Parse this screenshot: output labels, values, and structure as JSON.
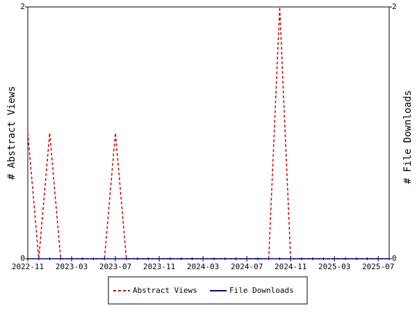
{
  "chart_data": {
    "type": "line",
    "categories": [
      "2022-11",
      null,
      null,
      null,
      "2023-03",
      null,
      null,
      null,
      "2023-07",
      null,
      null,
      null,
      "2023-11",
      null,
      null,
      null,
      "2024-03",
      null,
      null,
      null,
      "2024-07",
      null,
      null,
      null,
      "2024-11",
      null,
      null,
      null,
      "2025-03",
      null,
      null,
      null,
      "2025-07",
      null
    ],
    "series": [
      {
        "name": "Abstract Views",
        "color": "#cc0000",
        "dashed": true,
        "values": [
          1,
          0,
          1,
          0,
          0,
          0,
          0,
          0,
          1,
          0,
          0,
          0,
          0,
          0,
          0,
          0,
          0,
          0,
          0,
          0,
          0,
          0,
          0,
          2,
          0,
          0,
          0,
          0,
          0,
          0,
          0,
          0,
          0,
          0
        ]
      },
      {
        "name": "File Downloads",
        "color": "#000099",
        "dashed": false,
        "axis": "y2",
        "values": [
          0,
          0,
          0,
          0,
          0,
          0,
          0,
          0,
          0,
          0,
          0,
          0,
          0,
          0,
          0,
          0,
          0,
          0,
          0,
          0,
          0,
          0,
          0,
          0,
          0,
          0,
          0,
          0,
          0,
          0,
          0,
          0,
          0,
          0
        ]
      }
    ],
    "ylabel": "# Abstract Views",
    "y2label": "# File Downloads",
    "ylim": [
      0,
      2
    ],
    "yticks": [
      0,
      2
    ],
    "y2lim": [
      0,
      2
    ],
    "y2ticks": [
      0,
      2
    ],
    "legend": "bottom"
  }
}
